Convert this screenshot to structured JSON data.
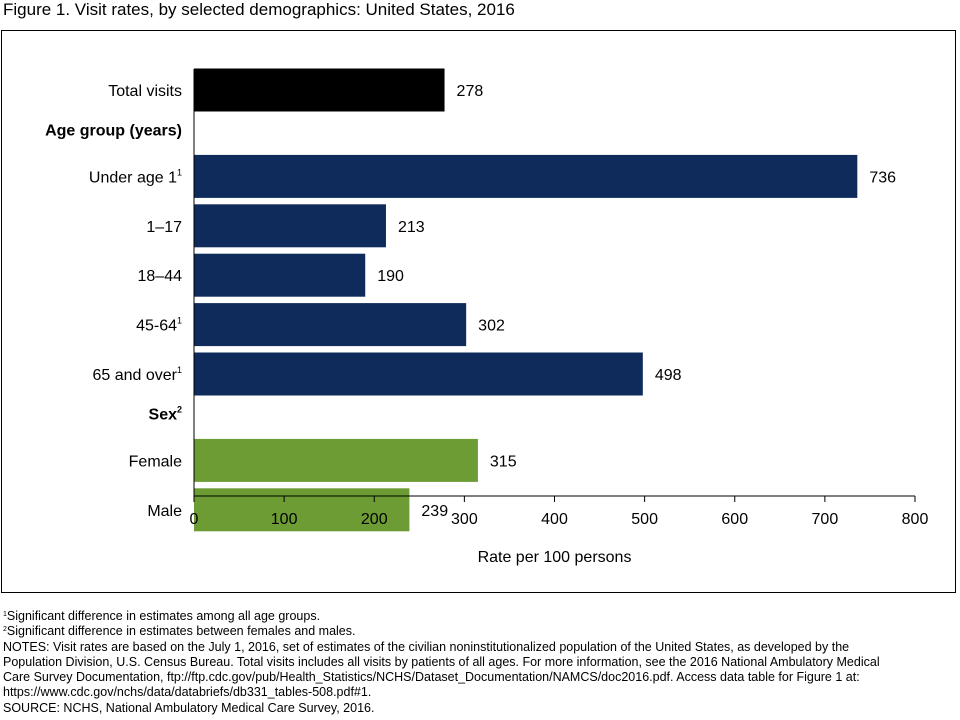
{
  "title": "Figure 1. Visit rates, by selected demographics: United States, 2016",
  "colors": {
    "total": "#000000",
    "age": "#0f2b5b",
    "sex": "#6d9b34"
  },
  "chart_data": {
    "type": "bar",
    "orientation": "horizontal",
    "xlabel": "Rate per 100 persons",
    "xlim": [
      0,
      800
    ],
    "xticks": [
      0,
      100,
      200,
      300,
      400,
      500,
      600,
      700,
      800
    ],
    "grid": false,
    "rows": [
      {
        "kind": "bar",
        "label": "Total visits",
        "sup": "",
        "value": 278,
        "group": "total",
        "value_label": "278"
      },
      {
        "kind": "header",
        "label": "Age group (years)",
        "sup": ""
      },
      {
        "kind": "bar",
        "label": "Under age 1",
        "sup": "1",
        "value": 736,
        "group": "age",
        "value_label": "736"
      },
      {
        "kind": "bar",
        "label": "1–17",
        "sup": "",
        "value": 213,
        "group": "age",
        "value_label": "213"
      },
      {
        "kind": "bar",
        "label": "18–44",
        "sup": "",
        "value": 190,
        "group": "age",
        "value_label": "190"
      },
      {
        "kind": "bar",
        "label": "45-64",
        "sup": "1",
        "value": 302,
        "group": "age",
        "value_label": "302"
      },
      {
        "kind": "bar",
        "label": "65 and over",
        "sup": "1",
        "value": 498,
        "group": "age",
        "value_label": "498"
      },
      {
        "kind": "header",
        "label": "Sex",
        "sup": "2"
      },
      {
        "kind": "bar",
        "label": "Female",
        "sup": "",
        "value": 315,
        "group": "sex",
        "value_label": "315"
      },
      {
        "kind": "bar",
        "label": "Male",
        "sup": "",
        "value": 239,
        "group": "sex",
        "value_label": "239"
      }
    ]
  },
  "notes": {
    "note1_sup": "1",
    "note1": "Significant difference in estimates among all age groups.",
    "note2_sup": "2",
    "note2": "Significant difference in estimates between females and males.",
    "notes_line1": "NOTES: Visit rates are based on the July 1, 2016, set of estimates of the civilian noninstitutionalized population of the United States, as developed by the",
    "notes_line2": "Population Division, U.S. Census Bureau. Total visits includes all visits by patients of all ages. For more information, see the 2016 National Ambulatory Medical",
    "notes_line3": "Care Survey Documentation, ftp://ftp.cdc.gov/pub/Health_Statistics/NCHS/Dataset_Documentation/NAMCS/doc2016.pdf. Access data table for Figure 1 at:",
    "notes_line4": "https://www.cdc.gov/nchs/data/databriefs/db331_tables-508.pdf#1.",
    "source": "SOURCE: NCHS, National Ambulatory Medical Care Survey, 2016."
  }
}
